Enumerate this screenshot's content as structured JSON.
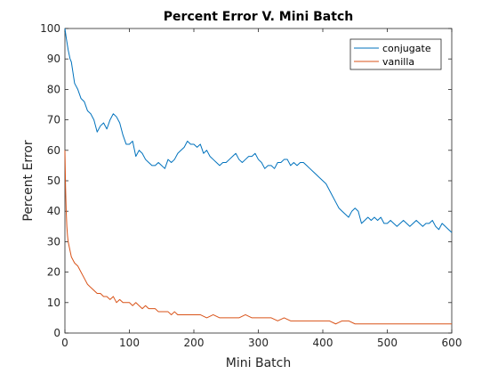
{
  "chart_data": {
    "type": "line",
    "title": "Percent Error V. Mini Batch",
    "xlabel": "Mini Batch",
    "ylabel": "Percent Error",
    "xlim": [
      0,
      600
    ],
    "ylim": [
      0,
      100
    ],
    "xticks": [
      0,
      100,
      200,
      300,
      400,
      500,
      600
    ],
    "yticks": [
      0,
      10,
      20,
      30,
      40,
      50,
      60,
      70,
      80,
      90,
      100
    ],
    "grid": false,
    "legend": "top-right",
    "series": [
      {
        "name": "conjugate",
        "color": "#0072bd",
        "x": [
          0,
          2,
          5,
          8,
          10,
          15,
          20,
          25,
          30,
          35,
          40,
          45,
          50,
          55,
          60,
          65,
          70,
          75,
          80,
          85,
          90,
          95,
          100,
          105,
          110,
          115,
          120,
          125,
          130,
          135,
          140,
          145,
          150,
          155,
          160,
          165,
          170,
          175,
          180,
          185,
          190,
          195,
          200,
          205,
          210,
          215,
          220,
          225,
          230,
          235,
          240,
          245,
          250,
          255,
          260,
          265,
          270,
          275,
          280,
          285,
          290,
          295,
          300,
          305,
          310,
          315,
          320,
          325,
          330,
          335,
          340,
          345,
          350,
          355,
          360,
          365,
          370,
          375,
          380,
          385,
          390,
          395,
          400,
          405,
          410,
          415,
          420,
          425,
          430,
          435,
          440,
          445,
          450,
          455,
          460,
          465,
          470,
          475,
          480,
          485,
          490,
          495,
          500,
          505,
          510,
          515,
          520,
          525,
          530,
          535,
          540,
          545,
          550,
          555,
          560,
          565,
          570,
          575,
          580,
          585,
          590,
          595,
          600
        ],
        "y": [
          100,
          97,
          93,
          90,
          89,
          82,
          80,
          77,
          76,
          73,
          72,
          70,
          66,
          68,
          69,
          67,
          70,
          72,
          71,
          69,
          65,
          62,
          62,
          63,
          58,
          60,
          59,
          57,
          56,
          55,
          55,
          56,
          55,
          54,
          57,
          56,
          57,
          59,
          60,
          61,
          63,
          62,
          62,
          61,
          62,
          59,
          60,
          58,
          57,
          56,
          55,
          56,
          56,
          57,
          58,
          59,
          57,
          56,
          57,
          58,
          58,
          59,
          57,
          56,
          54,
          55,
          55,
          54,
          56,
          56,
          57,
          57,
          55,
          56,
          55,
          56,
          56,
          55,
          54,
          53,
          52,
          51,
          50,
          49,
          47,
          45,
          43,
          41,
          40,
          39,
          38,
          40,
          41,
          40,
          36,
          37,
          38,
          37,
          38,
          37,
          38,
          36,
          36,
          37,
          36,
          35,
          36,
          37,
          36,
          35,
          36,
          37,
          36,
          35,
          36,
          36,
          37,
          35,
          34,
          36,
          35,
          34,
          33
        ]
      },
      {
        "name": "vanilla",
        "color": "#d95319",
        "x": [
          0,
          1,
          2,
          3,
          4,
          5,
          7,
          10,
          15,
          20,
          25,
          30,
          35,
          40,
          45,
          50,
          55,
          60,
          65,
          70,
          75,
          80,
          85,
          90,
          95,
          100,
          105,
          110,
          115,
          120,
          125,
          130,
          135,
          140,
          145,
          150,
          155,
          160,
          165,
          170,
          175,
          180,
          185,
          190,
          195,
          200,
          210,
          220,
          230,
          240,
          250,
          260,
          270,
          280,
          290,
          300,
          310,
          320,
          330,
          340,
          350,
          360,
          370,
          380,
          390,
          400,
          410,
          420,
          430,
          440,
          450,
          460,
          470,
          480,
          490,
          500,
          510,
          520,
          530,
          540,
          550,
          560,
          570,
          580,
          590,
          600
        ],
        "y": [
          60,
          48,
          40,
          35,
          32,
          30,
          28,
          25,
          23,
          22,
          20,
          18,
          16,
          15,
          14,
          13,
          13,
          12,
          12,
          11,
          12,
          10,
          11,
          10,
          10,
          10,
          9,
          10,
          9,
          8,
          9,
          8,
          8,
          8,
          7,
          7,
          7,
          7,
          6,
          7,
          6,
          6,
          6,
          6,
          6,
          6,
          6,
          5,
          6,
          5,
          5,
          5,
          5,
          6,
          5,
          5,
          5,
          5,
          4,
          5,
          4,
          4,
          4,
          4,
          4,
          4,
          4,
          3,
          4,
          4,
          3,
          3,
          3,
          3,
          3,
          3,
          3,
          3,
          3,
          3,
          3,
          3,
          3,
          3,
          3,
          3
        ]
      }
    ]
  }
}
